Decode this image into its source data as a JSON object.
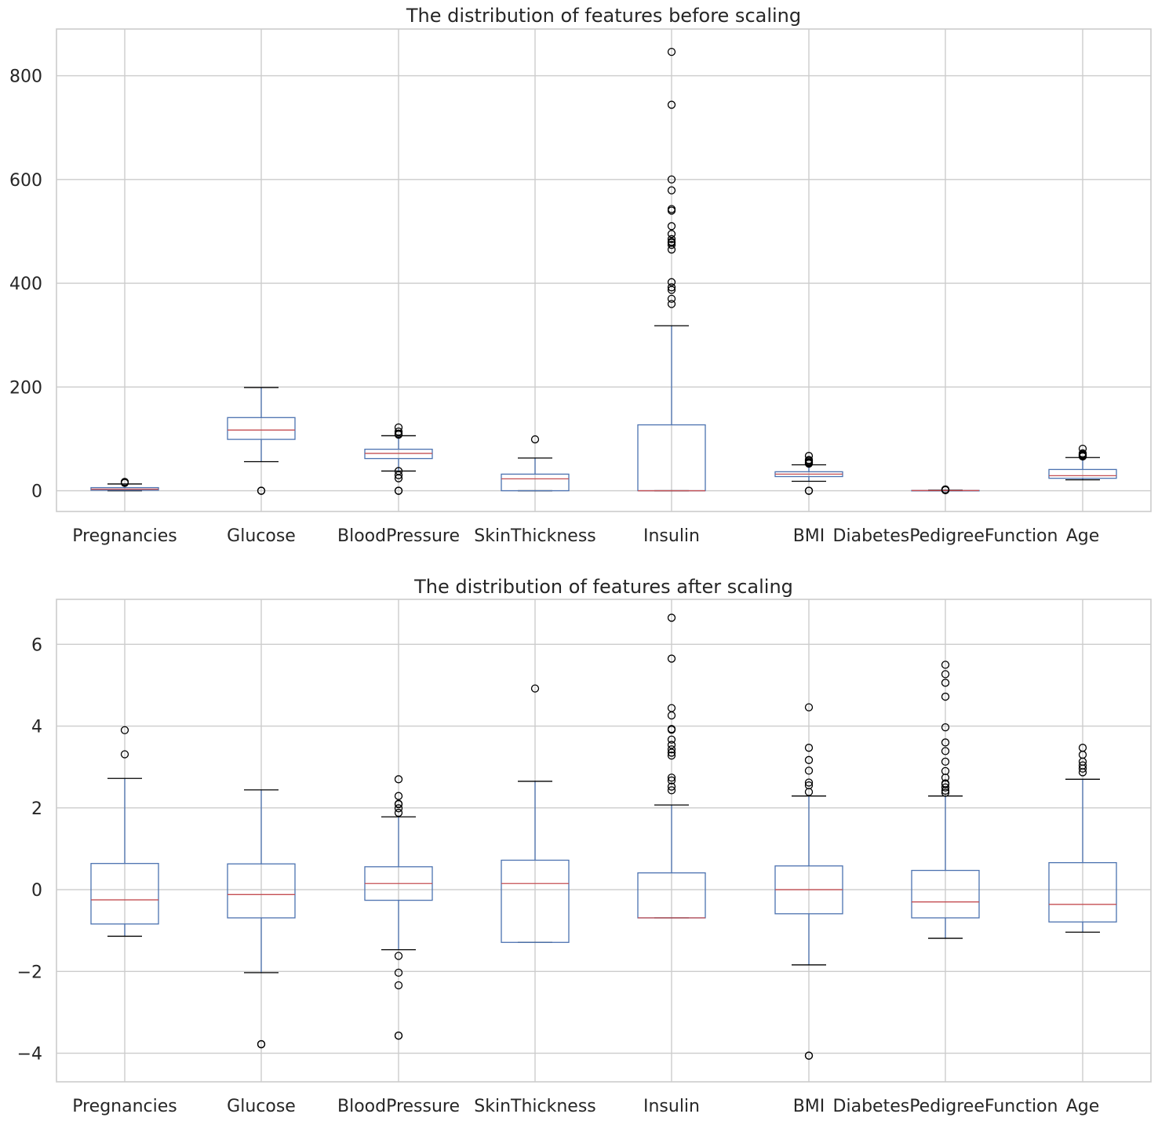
{
  "chart_data": [
    {
      "type": "box",
      "title": "The distribution of features before scaling",
      "xlabel": "",
      "ylabel": "",
      "ylim": [
        -40,
        890
      ],
      "yticks": [
        0,
        200,
        400,
        600,
        800
      ],
      "ytick_labels": [
        "0",
        "200",
        "400",
        "600",
        "800"
      ],
      "grid": true,
      "categories": [
        "Pregnancies",
        "Glucose",
        "BloodPressure",
        "SkinThickness",
        "Insulin",
        "BMI",
        "DiabetesPedigreeFunction",
        "Age"
      ],
      "boxes": [
        {
          "whislo": 0,
          "q1": 1,
          "med": 3,
          "q3": 6,
          "whishi": 13,
          "fliers": [
            15,
            17
          ]
        },
        {
          "whislo": 56,
          "q1": 99,
          "med": 117,
          "q3": 141,
          "whishi": 199,
          "fliers": [
            0,
            0
          ]
        },
        {
          "whislo": 38,
          "q1": 62,
          "med": 72,
          "q3": 80,
          "whishi": 106,
          "fliers": [
            0,
            0,
            24,
            30,
            38,
            108,
            110,
            114,
            122
          ]
        },
        {
          "whislo": 0,
          "q1": 0,
          "med": 23,
          "q3": 32,
          "whishi": 63,
          "fliers": [
            99
          ]
        },
        {
          "whislo": 0,
          "q1": 0,
          "med": 0,
          "q3": 127,
          "whishi": 318,
          "fliers": [
            360,
            370,
            387,
            392,
            402,
            465,
            474,
            478,
            480,
            485,
            495,
            510,
            540,
            543,
            579,
            600,
            744,
            846
          ]
        },
        {
          "whislo": 18.2,
          "q1": 27.3,
          "med": 32,
          "q3": 36.6,
          "whishi": 50,
          "fliers": [
            0,
            0,
            52.3,
            53.2,
            55,
            57.3,
            59.4,
            67.1
          ]
        },
        {
          "whislo": 0.08,
          "q1": 0.24,
          "med": 0.37,
          "q3": 0.63,
          "whishi": 1.19,
          "fliers": [
            1.22,
            1.32,
            1.39,
            1.6,
            1.73,
            1.89,
            2.13,
            2.29,
            2.42
          ]
        },
        {
          "whislo": 21,
          "q1": 24,
          "med": 29,
          "q3": 41,
          "whishi": 64,
          "fliers": [
            66,
            67,
            68,
            69,
            70,
            72,
            81
          ]
        }
      ]
    },
    {
      "type": "box",
      "title": "The distribution of features after scaling",
      "xlabel": "",
      "ylabel": "",
      "ylim": [
        -4.7,
        7.1
      ],
      "yticks": [
        -4,
        -2,
        0,
        2,
        4,
        6
      ],
      "ytick_labels": [
        "−4",
        "−2",
        "0",
        "2",
        "4",
        "6"
      ],
      "grid": true,
      "categories": [
        "Pregnancies",
        "Glucose",
        "BloodPressure",
        "SkinThickness",
        "Insulin",
        "BMI",
        "DiabetesPedigreeFunction",
        "Age"
      ],
      "boxes": [
        {
          "whislo": -1.14,
          "q1": -0.84,
          "med": -0.25,
          "q3": 0.64,
          "whishi": 2.72,
          "fliers": [
            3.31,
            3.9
          ]
        },
        {
          "whislo": -2.03,
          "q1": -0.69,
          "med": -0.12,
          "q3": 0.63,
          "whishi": 2.44,
          "fliers": [
            -3.78,
            -3.78
          ]
        },
        {
          "whislo": -1.47,
          "q1": -0.26,
          "med": 0.15,
          "q3": 0.56,
          "whishi": 1.78,
          "fliers": [
            -3.57,
            -3.57,
            -2.34,
            -2.03,
            -1.62,
            1.88,
            1.99,
            2.09,
            2.1,
            2.29,
            2.7
          ]
        },
        {
          "whislo": -1.29,
          "q1": -1.29,
          "med": 0.15,
          "q3": 0.72,
          "whishi": 2.65,
          "fliers": [
            4.92
          ]
        },
        {
          "whislo": -0.69,
          "q1": -0.69,
          "med": -0.69,
          "q3": 0.41,
          "whishi": 2.07,
          "fliers": [
            2.43,
            2.52,
            2.67,
            2.74,
            3.28,
            3.35,
            3.43,
            3.54,
            3.67,
            3.91,
            3.93,
            4.26,
            4.44,
            5.65,
            6.65
          ]
        },
        {
          "whislo": -1.84,
          "q1": -0.59,
          "med": 0.0,
          "q3": 0.58,
          "whishi": 2.29,
          "fliers": [
            -4.06,
            -4.06,
            2.39,
            2.55,
            2.62,
            2.91,
            3.17,
            3.47,
            4.46
          ]
        },
        {
          "whislo": -1.19,
          "q1": -0.69,
          "med": -0.3,
          "q3": 0.47,
          "whishi": 2.29,
          "fliers": [
            2.37,
            2.42,
            2.5,
            2.58,
            2.6,
            2.74,
            2.9,
            3.13,
            3.39,
            3.6,
            3.97,
            4.72,
            5.06,
            5.27,
            5.5
          ]
        },
        {
          "whislo": -1.04,
          "q1": -0.79,
          "med": -0.36,
          "q3": 0.66,
          "whishi": 2.7,
          "fliers": [
            2.87,
            2.96,
            3.04,
            3.13,
            3.3,
            3.47
          ]
        }
      ]
    }
  ]
}
